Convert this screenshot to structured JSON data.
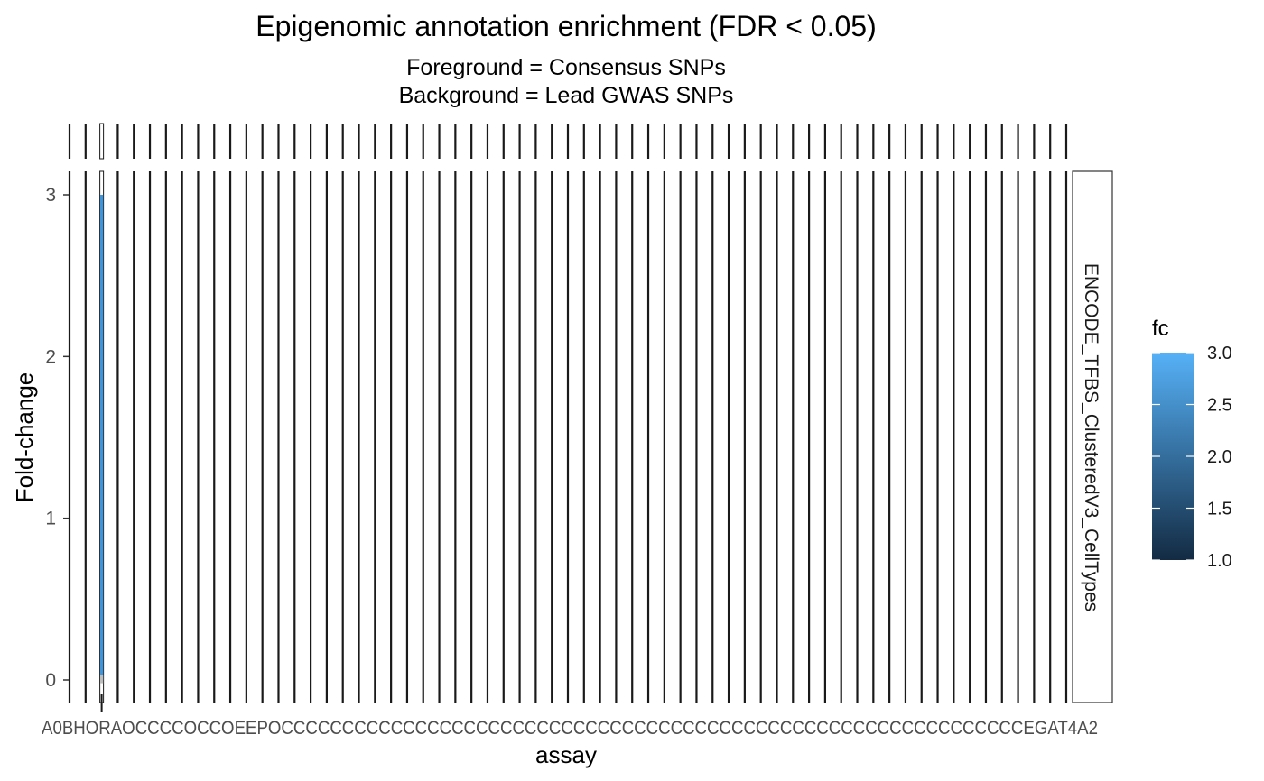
{
  "chart_data": {
    "type": "bar",
    "title": "Epigenomic annotation enrichment (FDR < 0.05)",
    "subtitle_lines": [
      "Foreground = Consensus SNPs",
      "Background = Lead GWAS SNPs"
    ],
    "xlabel": "assay",
    "ylabel": "Fold-change",
    "ylim": [
      -0.15,
      3.15
    ],
    "yticks": [
      0,
      1,
      2,
      3
    ],
    "grid": false,
    "panel_count": 63,
    "highlighted_panel_index": 2,
    "highlighted_value": 3.0,
    "other_panel_value": 0,
    "facet_label": "ENCODE_TFBS_ClusteredV3_CellTypes",
    "x_tick_overlay_text": "A0BHORAOCCCCOCCOEEPOCCCCCCCCCCCCCCCCCCCCCCCCCCCCCCCCCCCCCCCCCCCCCCCCCCCCCCCCCCCCCEGAT4A2",
    "legend": {
      "title": "fc",
      "min": 1.0,
      "max": 3.0,
      "ticks": [
        "1.0",
        "1.5",
        "2.0",
        "2.5",
        "3.0"
      ],
      "color_low": "#132B43",
      "color_high": "#56B1F7",
      "position": "right"
    }
  },
  "colors": {
    "bar_fill": "#3F95DD",
    "bar_outline": "#8a8a8a",
    "panel_border": "#1a1a1a"
  }
}
